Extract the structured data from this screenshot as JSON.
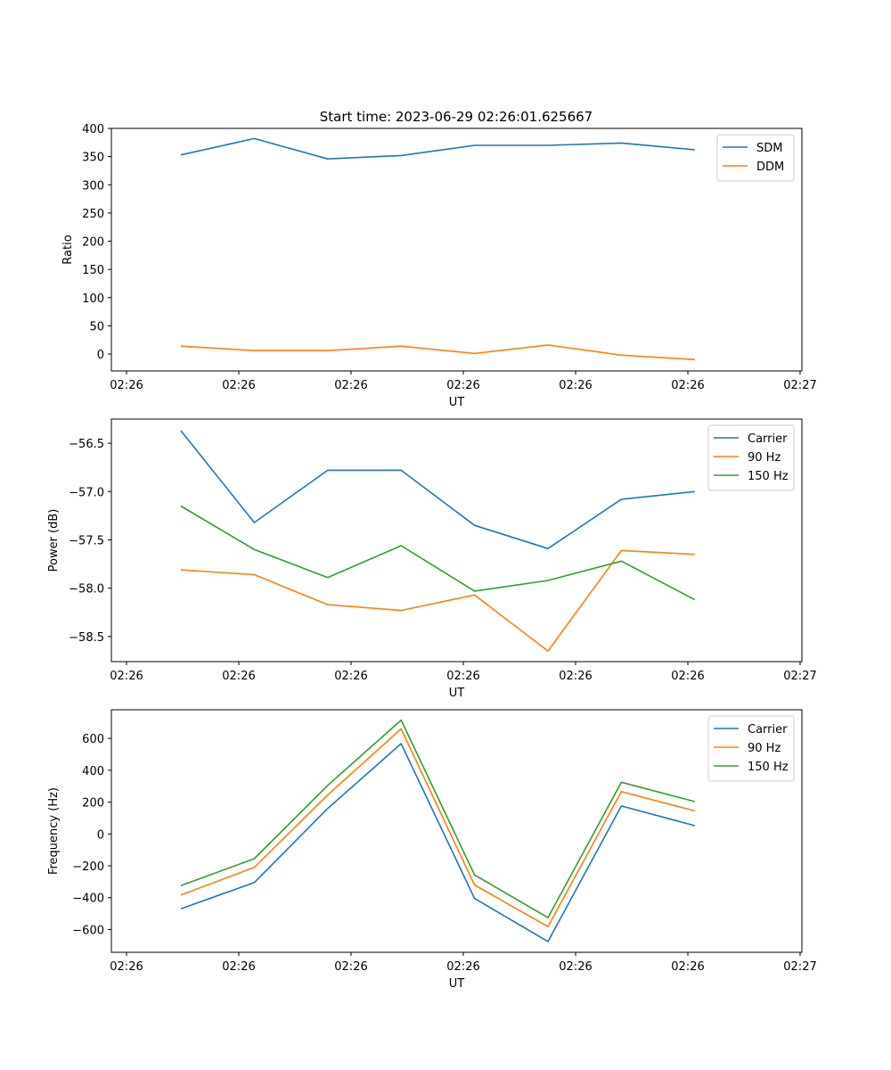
{
  "title": "Start time: 2023-06-29 02:26:01.625667",
  "colors": {
    "blue": "#1f77b4",
    "orange": "#ff7f0e",
    "green": "#2ca02c"
  },
  "chart_data": [
    {
      "type": "line",
      "ylabel": "Ratio",
      "xlabel": "UT",
      "x_tick_labels": [
        "02:26",
        "02:26",
        "02:26",
        "02:26",
        "02:26",
        "02:26",
        "02:26",
        "02:27"
      ],
      "y_ticks": [
        "0",
        "50",
        "100",
        "150",
        "200",
        "250",
        "300",
        "350",
        "400"
      ],
      "ylim": [
        -30,
        400
      ],
      "legend_position": "top-right",
      "grid": false,
      "x_index": [
        0,
        1,
        2,
        3,
        4,
        5,
        6,
        7
      ],
      "series": [
        {
          "name": "SDM",
          "color": "#1f77b4",
          "values": [
            353,
            382,
            346,
            352,
            370,
            370,
            374,
            362
          ]
        },
        {
          "name": "DDM",
          "color": "#ff7f0e",
          "values": [
            14,
            6,
            6,
            14,
            1,
            16,
            -2,
            -10
          ]
        }
      ]
    },
    {
      "type": "line",
      "ylabel": "Power (dB)",
      "xlabel": "UT",
      "x_tick_labels": [
        "02:26",
        "02:26",
        "02:26",
        "02:26",
        "02:26",
        "02:26",
        "02:26",
        "02:27"
      ],
      "y_ticks": [
        "−58.5",
        "−58.0",
        "−57.5",
        "−57.0",
        "−56.5"
      ],
      "ylim": [
        -58.76,
        -56.25
      ],
      "legend_position": "top-right",
      "grid": false,
      "x_index": [
        0,
        1,
        2,
        3,
        4,
        5,
        6,
        7
      ],
      "series": [
        {
          "name": "Carrier",
          "color": "#1f77b4",
          "values": [
            -56.37,
            -57.32,
            -56.78,
            -56.78,
            -57.35,
            -57.59,
            -57.08,
            -57.0
          ]
        },
        {
          "name": "90 Hz",
          "color": "#ff7f0e",
          "values": [
            -57.81,
            -57.86,
            -58.17,
            -58.23,
            -58.07,
            -58.65,
            -57.61,
            -57.65
          ]
        },
        {
          "name": "150 Hz",
          "color": "#2ca02c",
          "values": [
            -57.15,
            -57.6,
            -57.89,
            -57.56,
            -58.03,
            -57.92,
            -57.72,
            -58.12
          ]
        }
      ]
    },
    {
      "type": "line",
      "ylabel": "Frequency (Hz)",
      "xlabel": "UT",
      "x_tick_labels": [
        "02:26",
        "02:26",
        "02:26",
        "02:26",
        "02:26",
        "02:26",
        "02:26",
        "02:27"
      ],
      "y_ticks": [
        "−600",
        "−400",
        "−200",
        "0",
        "200",
        "400",
        "600"
      ],
      "ylim": [
        -743,
        780
      ],
      "legend_position": "top-right",
      "grid": false,
      "x_index": [
        0,
        1,
        2,
        3,
        4,
        5,
        6,
        7
      ],
      "series": [
        {
          "name": "Carrier",
          "color": "#1f77b4",
          "values": [
            -470,
            -305,
            160,
            567,
            -405,
            -675,
            176,
            52
          ]
        },
        {
          "name": "90 Hz",
          "color": "#ff7f0e",
          "values": [
            -383,
            -210,
            245,
            660,
            -320,
            -582,
            266,
            145
          ]
        },
        {
          "name": "150 Hz",
          "color": "#2ca02c",
          "values": [
            -325,
            -155,
            305,
            715,
            -257,
            -525,
            325,
            203
          ]
        }
      ]
    }
  ]
}
